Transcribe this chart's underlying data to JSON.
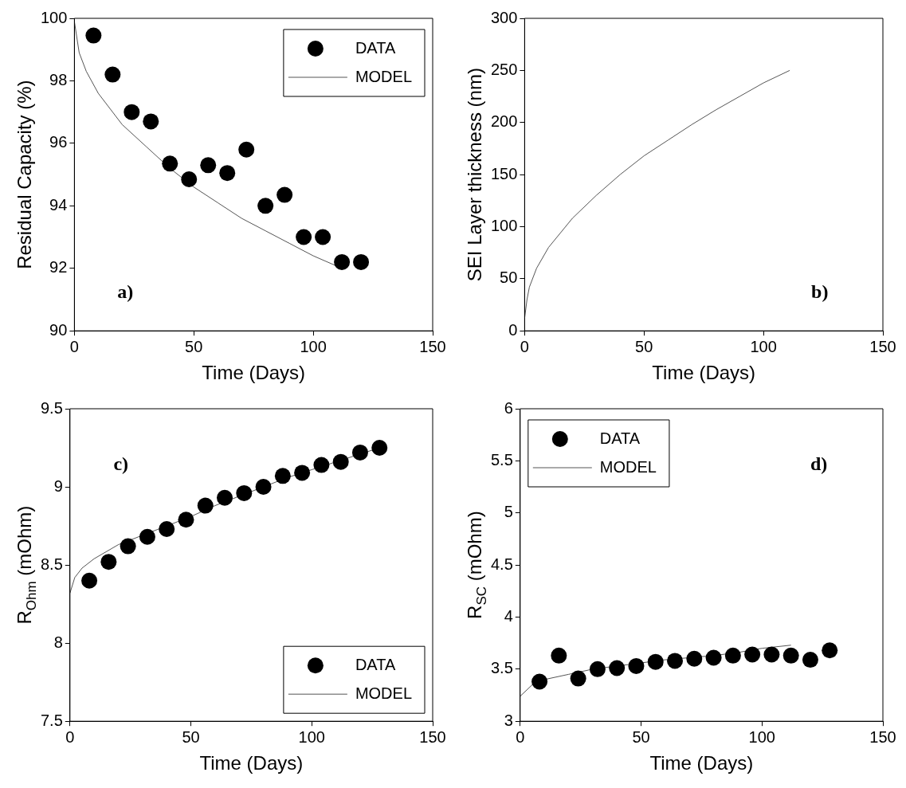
{
  "chart_data": [
    {
      "type": "scatter",
      "xlabel": "Time (Days)",
      "ylabel": "Residual Capacity (%)",
      "xlim": [
        0,
        150
      ],
      "xticks": [
        0,
        50,
        100,
        150
      ],
      "ylim": [
        90,
        100
      ],
      "yticks": [
        90,
        92,
        94,
        96,
        98,
        100
      ],
      "grid": false,
      "legend": "top right",
      "annotations": [
        "a)"
      ],
      "series": [
        {
          "name": "DATA",
          "type": "scatter",
          "color": "#000000",
          "marker": "circle",
          "x": [
            8,
            16,
            24,
            32,
            40,
            48,
            56,
            64,
            72,
            80,
            88,
            96,
            104,
            112,
            120
          ],
          "values": [
            99.45,
            98.2,
            97.0,
            96.7,
            95.35,
            94.85,
            95.3,
            95.05,
            95.8,
            94.0,
            94.35,
            93.0,
            93.0,
            92.2,
            92.2
          ]
        },
        {
          "name": "MODEL",
          "type": "line",
          "color": "#555555",
          "marker": "none",
          "x": [
            0,
            2,
            5,
            10,
            20,
            30,
            40,
            50,
            60,
            70,
            80,
            90,
            100,
            112
          ],
          "values": [
            99.9,
            98.9,
            98.3,
            97.6,
            96.6,
            95.9,
            95.2,
            94.6,
            94.1,
            93.6,
            93.2,
            92.8,
            92.4,
            92.0
          ]
        }
      ]
    },
    {
      "type": "line",
      "xlabel": "Time (Days)",
      "ylabel": "SEI Layer thickness (nm)",
      "xlim": [
        0,
        150
      ],
      "xticks": [
        0,
        50,
        100,
        150
      ],
      "ylim": [
        0,
        300
      ],
      "yticks": [
        0,
        50,
        100,
        150,
        200,
        250,
        300
      ],
      "grid": false,
      "annotations": [
        "b)"
      ],
      "series": [
        {
          "color": "#555555",
          "marker": "none",
          "x": [
            0,
            1,
            2,
            5,
            10,
            20,
            30,
            40,
            50,
            60,
            70,
            80,
            90,
            100,
            111
          ],
          "values": [
            12,
            30,
            42,
            60,
            80,
            108,
            130,
            150,
            168,
            183,
            198,
            212,
            225,
            238,
            250
          ]
        }
      ]
    },
    {
      "type": "scatter",
      "xlabel": "Time (Days)",
      "ylabel": "R$_{Ohm}$ (mOhm)",
      "xlim": [
        0,
        150
      ],
      "xticks": [
        0,
        50,
        100,
        150
      ],
      "ylim": [
        7.5,
        9.5
      ],
      "yticks": [
        7.5,
        8,
        8.5,
        9,
        9.5
      ],
      "grid": false,
      "legend": "bottom right",
      "annotations": [
        "c)"
      ],
      "series": [
        {
          "name": "DATA",
          "type": "scatter",
          "color": "#000000",
          "marker": "circle",
          "x": [
            8,
            16,
            24,
            32,
            40,
            48,
            56,
            64,
            72,
            80,
            88,
            96,
            104,
            112,
            120,
            128
          ],
          "values": [
            8.4,
            8.52,
            8.62,
            8.68,
            8.73,
            8.79,
            8.88,
            8.93,
            8.96,
            9.0,
            9.07,
            9.09,
            9.14,
            9.16,
            9.22,
            9.25
          ]
        },
        {
          "name": "MODEL",
          "type": "line",
          "color": "#555555",
          "marker": "none",
          "x": [
            0,
            2,
            5,
            10,
            20,
            30,
            40,
            50,
            60,
            70,
            80,
            90,
            100,
            110,
            120,
            128
          ],
          "values": [
            8.32,
            8.42,
            8.48,
            8.54,
            8.63,
            8.69,
            8.75,
            8.81,
            8.88,
            8.94,
            9.0,
            9.06,
            9.11,
            9.16,
            9.21,
            9.25
          ]
        }
      ]
    },
    {
      "type": "scatter",
      "xlabel": "Time (Days)",
      "ylabel": "R$_{SC}$ (mOhm)",
      "xlim": [
        0,
        150
      ],
      "xticks": [
        0,
        50,
        100,
        150
      ],
      "ylim": [
        3,
        6
      ],
      "yticks": [
        3,
        3.5,
        4,
        4.5,
        5,
        5.5,
        6
      ],
      "grid": false,
      "legend": "top left",
      "annotations": [
        "d)"
      ],
      "series": [
        {
          "name": "DATA",
          "type": "scatter",
          "color": "#000000",
          "marker": "circle",
          "x": [
            8,
            16,
            24,
            32,
            40,
            48,
            56,
            64,
            72,
            80,
            88,
            96,
            104,
            112,
            120,
            128
          ],
          "values": [
            3.38,
            3.63,
            3.41,
            3.5,
            3.51,
            3.53,
            3.57,
            3.58,
            3.6,
            3.61,
            3.63,
            3.64,
            3.64,
            3.63,
            3.59,
            3.68
          ]
        },
        {
          "name": "MODEL",
          "type": "line",
          "color": "#555555",
          "marker": "none",
          "x": [
            0,
            5,
            10,
            20,
            30,
            40,
            50,
            60,
            70,
            80,
            90,
            100,
            112
          ],
          "values": [
            3.24,
            3.35,
            3.4,
            3.45,
            3.5,
            3.53,
            3.56,
            3.59,
            3.61,
            3.63,
            3.66,
            3.7,
            3.73
          ]
        }
      ]
    }
  ]
}
